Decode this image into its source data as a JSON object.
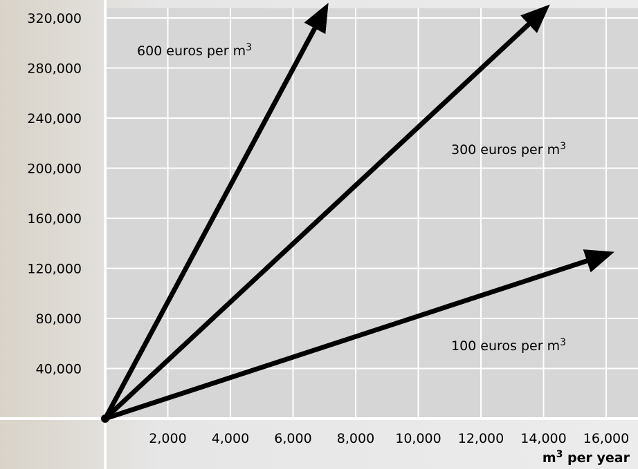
{
  "chart_data": {
    "type": "line",
    "xlabel_main": "m",
    "xlabel_sup": "3",
    "xlabel_rest": " per year",
    "ylabel": "",
    "xlim": [
      0,
      16000
    ],
    "ylim": [
      0,
      320000
    ],
    "x_ticks": [
      2000,
      4000,
      6000,
      8000,
      10000,
      12000,
      14000,
      16000
    ],
    "x_tick_labels": [
      "2,000",
      "4,000",
      "6,000",
      "8,000",
      "10,000",
      "12,000",
      "14,000",
      "16,000"
    ],
    "y_ticks": [
      40000,
      80000,
      120000,
      160000,
      200000,
      240000,
      280000,
      320000
    ],
    "y_tick_labels": [
      "40,000",
      "80,000",
      "120,000",
      "160,000",
      "200,000",
      "240,000",
      "280,000",
      "320,000"
    ],
    "grid": true,
    "series": [
      {
        "label_main": "600 euros per m",
        "label_sup": "3",
        "price": 600,
        "x": [
          0,
          7000
        ],
        "y": [
          0,
          326000
        ]
      },
      {
        "label_main": "300 euros per m",
        "label_sup": "3",
        "price": 300,
        "x": [
          0,
          14000
        ],
        "y": [
          0,
          326000
        ]
      },
      {
        "label_main": "100 euros per m",
        "label_sup": "3",
        "price": 100,
        "x": [
          0,
          16000
        ],
        "y": [
          0,
          131000
        ]
      }
    ],
    "colors": {
      "plot_bg": "#d6d6d6",
      "page_bg": "#e4e4e4",
      "grid": "#ffffff",
      "line": "#000000"
    }
  }
}
